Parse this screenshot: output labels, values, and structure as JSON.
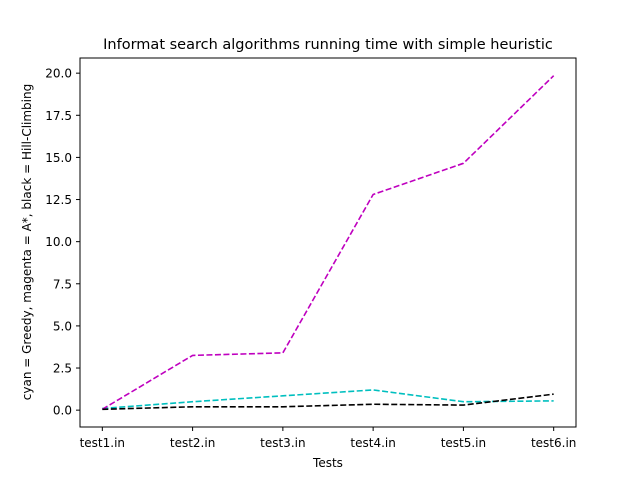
{
  "chart_data": {
    "type": "line",
    "title": "Informat search algorithms running time with simple heuristic",
    "xlabel": "Tests",
    "ylabel": "cyan = Greedy, magenta = A*, black = Hill-Climbing",
    "categories": [
      "test1.in",
      "test2.in",
      "test3.in",
      "test4.in",
      "test5.in",
      "test6.in"
    ],
    "ylim": [
      -1.0,
      20.9
    ],
    "yticks": [
      0.0,
      2.5,
      5.0,
      7.5,
      10.0,
      12.5,
      15.0,
      17.5,
      20.0
    ],
    "ytick_labels": [
      "0.0",
      "2.5",
      "5.0",
      "7.5",
      "10.0",
      "12.5",
      "15.0",
      "17.5",
      "20.0"
    ],
    "grid": false,
    "legend": "none",
    "series": [
      {
        "key": "greedy",
        "color": "#00bfbf",
        "line_style": "dashed",
        "values": [
          0.1,
          0.5,
          0.85,
          1.2,
          0.5,
          0.55
        ]
      },
      {
        "key": "astar",
        "color": "#bf00bf",
        "line_style": "dashed",
        "values": [
          0.05,
          3.25,
          3.4,
          12.8,
          14.65,
          19.85
        ]
      },
      {
        "key": "hill_climbing",
        "color": "#000000",
        "line_style": "dashed",
        "values": [
          0.05,
          0.2,
          0.2,
          0.35,
          0.3,
          0.95
        ]
      }
    ]
  }
}
